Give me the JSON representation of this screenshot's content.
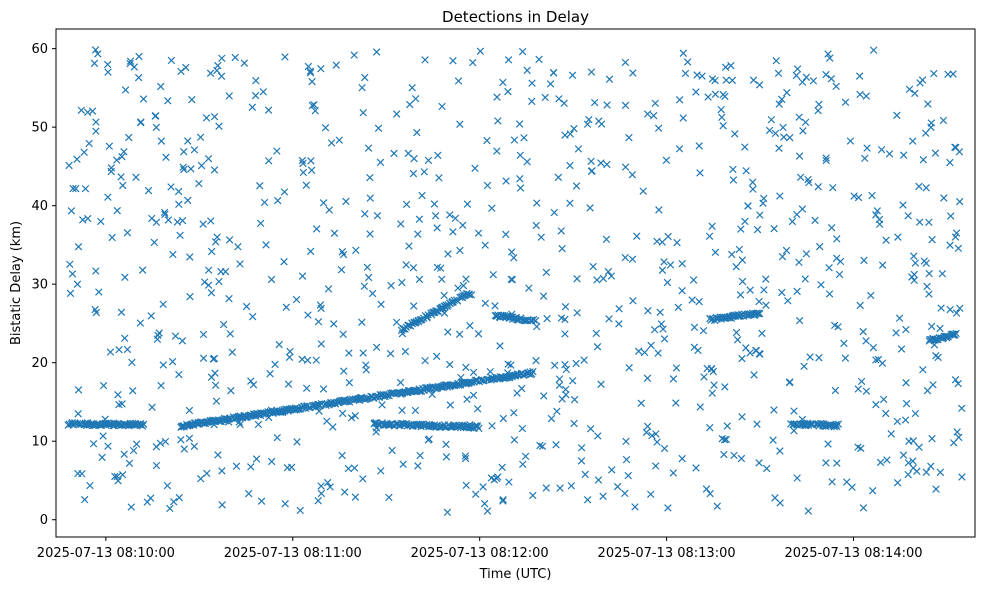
{
  "chart_data": {
    "type": "scatter",
    "title": "Detections in Delay",
    "xlabel": "Time (UTC)",
    "ylabel": "Bistatic Delay (km)",
    "marker": "x",
    "color": "#1f77b4",
    "grid": false,
    "x_start": "2025-07-13 08:09:44",
    "x_end": "2025-07-13 08:14:39",
    "ylim": [
      -2.2,
      62.5
    ],
    "xticks": [
      "2025-07-13 08:10:00",
      "2025-07-13 08:11:00",
      "2025-07-13 08:12:00",
      "2025-07-13 08:13:00",
      "2025-07-13 08:14:00"
    ],
    "yticks": [
      0,
      10,
      20,
      30,
      40,
      50,
      60
    ],
    "tracks": [
      {
        "t_start": "2025-07-13 08:09:48",
        "t_end": "2025-07-13 08:10:12",
        "y_start": 12.2,
        "y_end": 12.1
      },
      {
        "t_start": "2025-07-13 08:10:24",
        "t_end": "2025-07-13 08:12:17",
        "y_start": 11.9,
        "y_end": 18.7
      },
      {
        "t_start": "2025-07-13 08:11:26",
        "t_end": "2025-07-13 08:12:00",
        "y_start": 12.2,
        "y_end": 11.8
      },
      {
        "t_start": "2025-07-13 08:11:35",
        "t_end": "2025-07-13 08:11:57",
        "y_start": 24.2,
        "y_end": 28.9
      },
      {
        "t_start": "2025-07-13 08:12:05",
        "t_end": "2025-07-13 08:12:18",
        "y_start": 26.0,
        "y_end": 25.3
      },
      {
        "t_start": "2025-07-13 08:13:14",
        "t_end": "2025-07-13 08:13:30",
        "y_start": 25.5,
        "y_end": 26.3
      },
      {
        "t_start": "2025-07-13 08:13:40",
        "t_end": "2025-07-13 08:13:55",
        "y_start": 12.2,
        "y_end": 12.0
      },
      {
        "t_start": "2025-07-13 08:14:24",
        "t_end": "2025-07-13 08:14:33",
        "y_start": 22.8,
        "y_end": 23.6
      }
    ]
  }
}
